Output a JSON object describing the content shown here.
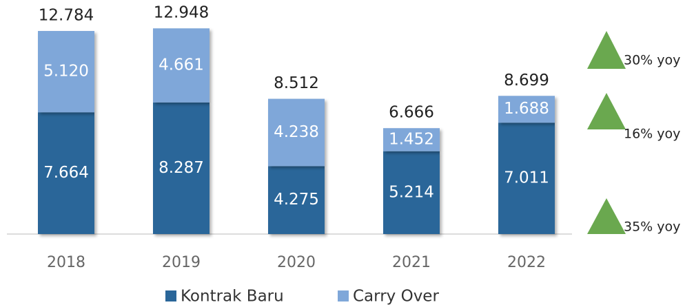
{
  "chart_data": {
    "type": "stacked_bar",
    "categories": [
      "2018",
      "2019",
      "2020",
      "2021",
      "2022"
    ],
    "series": [
      {
        "name": "Kontrak Baru",
        "color": "#2a6699",
        "values": [
          7.664,
          8.287,
          4.275,
          5.214,
          7.011
        ],
        "value_labels": [
          "7.664",
          "8.287",
          "4.275",
          "5.214",
          "7.011"
        ]
      },
      {
        "name": "Carry Over",
        "color": "#7fa7d9",
        "values": [
          5.12,
          4.661,
          4.238,
          1.452,
          1.688
        ],
        "value_labels": [
          "5.120",
          "4.661",
          "4.238",
          "1.452",
          "1.688"
        ]
      }
    ],
    "totals": [
      12.784,
      12.948,
      8.512,
      6.666,
      8.699
    ],
    "total_labels": [
      "12.784",
      "12.948",
      "8.512",
      "6.666",
      "8.699"
    ],
    "annotations": [
      "30% yoy",
      "16% yoy",
      "35% yoy"
    ],
    "ylim": [
      0,
      13
    ]
  }
}
